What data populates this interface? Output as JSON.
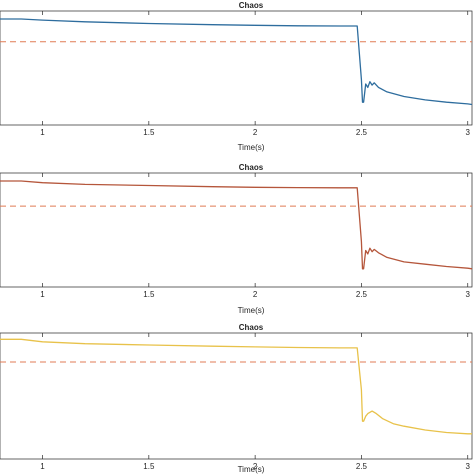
{
  "chart_data": [
    {
      "type": "line",
      "title": "Chaos",
      "xlabel": "Time(s)",
      "ylabel": "",
      "xlim": [
        0.8,
        3.02
      ],
      "xticks": [
        1,
        1.5,
        2,
        2.5,
        3
      ],
      "xtick_labels": [
        "1",
        "1.5",
        "2",
        "2.5",
        "3"
      ],
      "yticks_shown": false,
      "ylim": [
        0,
        1
      ],
      "grid": false,
      "series": [
        {
          "color": "#2e6d9e",
          "style": "solid",
          "x": [
            0.8,
            0.9,
            1.0,
            1.2,
            1.5,
            1.8,
            2.0,
            2.2,
            2.4,
            2.48,
            2.5,
            2.505,
            2.51,
            2.52,
            2.53,
            2.54,
            2.55,
            2.56,
            2.58,
            2.62,
            2.7,
            2.8,
            2.9,
            3.0,
            3.02
          ],
          "y": [
            0.93,
            0.93,
            0.92,
            0.905,
            0.89,
            0.88,
            0.875,
            0.87,
            0.868,
            0.868,
            0.4,
            0.2,
            0.2,
            0.36,
            0.33,
            0.38,
            0.35,
            0.37,
            0.33,
            0.29,
            0.25,
            0.22,
            0.2,
            0.185,
            0.18
          ]
        },
        {
          "color": "#e07b54",
          "style": "dashed",
          "x": [
            0.8,
            3.02
          ],
          "y": [
            0.73,
            0.73
          ]
        }
      ]
    },
    {
      "type": "line",
      "title": "Chaos",
      "xlabel": "Time(s)",
      "ylabel": "",
      "xlim": [
        0.8,
        3.02
      ],
      "xticks": [
        1,
        1.5,
        2,
        2.5,
        3
      ],
      "xtick_labels": [
        "1",
        "1.5",
        "2",
        "2.5",
        "3"
      ],
      "yticks_shown": false,
      "ylim": [
        0,
        1
      ],
      "grid": false,
      "series": [
        {
          "color": "#b5563b",
          "style": "solid",
          "x": [
            0.8,
            0.9,
            1.0,
            1.2,
            1.5,
            1.8,
            2.0,
            2.2,
            2.4,
            2.48,
            2.5,
            2.505,
            2.51,
            2.52,
            2.53,
            2.54,
            2.55,
            2.56,
            2.58,
            2.62,
            2.7,
            2.8,
            2.9,
            3.0,
            3.02
          ],
          "y": [
            0.93,
            0.93,
            0.915,
            0.9,
            0.89,
            0.88,
            0.875,
            0.872,
            0.87,
            0.87,
            0.4,
            0.16,
            0.16,
            0.32,
            0.29,
            0.34,
            0.31,
            0.33,
            0.3,
            0.26,
            0.22,
            0.2,
            0.18,
            0.165,
            0.16
          ]
        },
        {
          "color": "#e07b54",
          "style": "dashed",
          "x": [
            0.8,
            3.02
          ],
          "y": [
            0.71,
            0.71
          ]
        }
      ]
    },
    {
      "type": "line",
      "title": "Chaos",
      "xlabel": "Time(s)",
      "ylabel": "",
      "xlim": [
        0.8,
        3.02
      ],
      "xticks": [
        1,
        1.5,
        2,
        2.5,
        3
      ],
      "xtick_labels": [
        "1",
        "1.5",
        "2",
        "2.5",
        "3"
      ],
      "yticks_shown": false,
      "ylim": [
        0,
        1
      ],
      "grid": false,
      "series": [
        {
          "color": "#e8c24a",
          "style": "solid",
          "x": [
            0.8,
            0.9,
            1.0,
            1.2,
            1.5,
            1.8,
            2.0,
            2.2,
            2.4,
            2.48,
            2.5,
            2.505,
            2.51,
            2.52,
            2.53,
            2.55,
            2.57,
            2.6,
            2.65,
            2.7,
            2.8,
            2.9,
            3.0,
            3.02
          ],
          "y": [
            0.95,
            0.95,
            0.93,
            0.915,
            0.905,
            0.895,
            0.89,
            0.885,
            0.882,
            0.882,
            0.55,
            0.3,
            0.3,
            0.34,
            0.36,
            0.38,
            0.36,
            0.32,
            0.28,
            0.26,
            0.23,
            0.21,
            0.2,
            0.2
          ]
        },
        {
          "color": "#e07b54",
          "style": "dashed",
          "x": [
            0.8,
            3.02
          ],
          "y": [
            0.77,
            0.77
          ]
        }
      ]
    }
  ]
}
